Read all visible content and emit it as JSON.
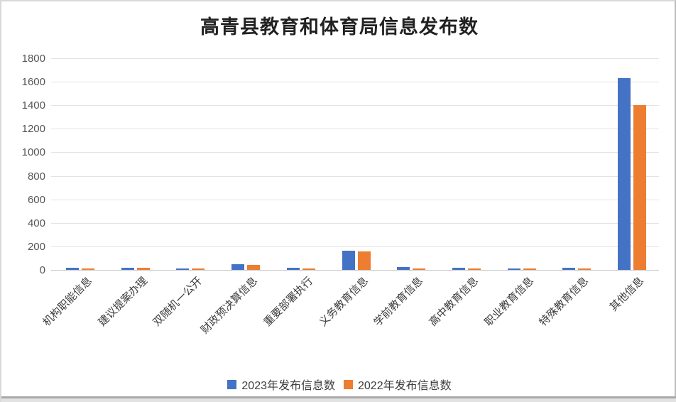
{
  "chart_data": {
    "type": "bar",
    "title": "高青县教育和体育局信息发布数",
    "categories": [
      "机构职能信息",
      "建议提案办理",
      "双随机一公开",
      "财政预决算信息",
      "重要部署执行",
      "义务教育信息",
      "学前教育信息",
      "高中教育信息",
      "职业教育信息",
      "特殊教育信息",
      "其他信息"
    ],
    "series": [
      {
        "name": "2023年发布信息数",
        "color": "#4472C4",
        "values": [
          20,
          21,
          13,
          50,
          20,
          162,
          23,
          16,
          15,
          18,
          1630
        ]
      },
      {
        "name": "2022年发布信息数",
        "color": "#ED7D31",
        "values": [
          10,
          19,
          10,
          45,
          13,
          160,
          12,
          13,
          13,
          13,
          1400
        ]
      }
    ],
    "xlabel": "",
    "ylabel": "",
    "ylim": [
      0,
      1800
    ],
    "yticks": [
      0,
      200,
      400,
      600,
      800,
      1000,
      1200,
      1400,
      1600,
      1800
    ],
    "grid": true,
    "legend_position": "bottom"
  },
  "style": {
    "gridline_color": "#e3e3e3",
    "axis_line_color": "#c9c9c9",
    "title_color": "#212121",
    "tick_label_color": "#555555"
  }
}
